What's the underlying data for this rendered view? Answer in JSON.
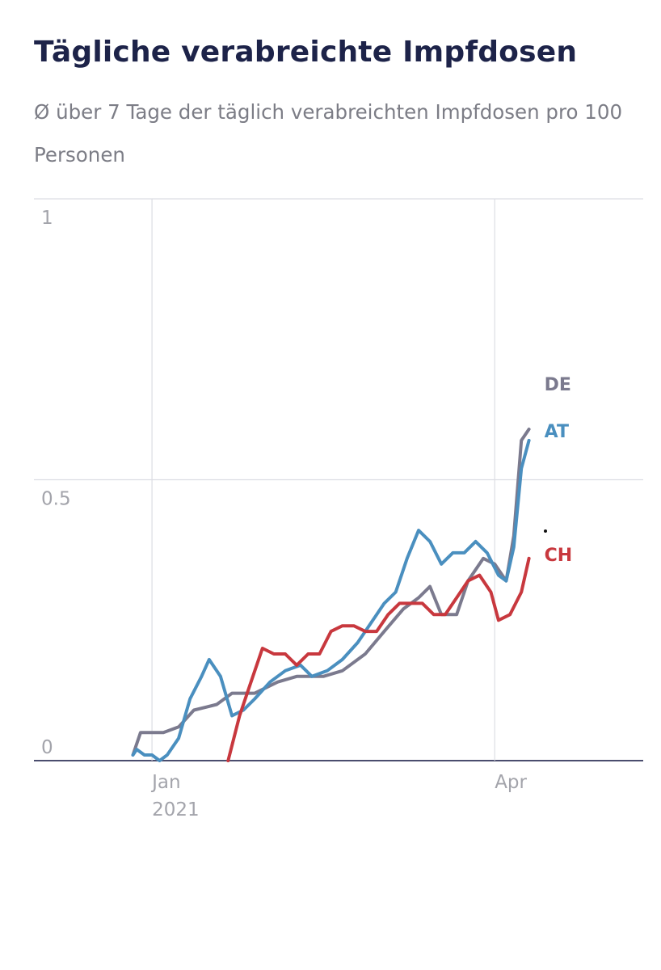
{
  "chart_data": {
    "type": "line",
    "title": "Tägliche verabreichte Impfdosen",
    "subtitle": "Ø über 7 Tage der täglich verabreichten Impfdosen pro 100 Personen",
    "y_ticks": [
      "1",
      "0.5",
      "0"
    ],
    "ylim": [
      0,
      1
    ],
    "x_ticks": [
      {
        "label": "Jan",
        "sublabel": "2021",
        "date": "2021-01-01"
      },
      {
        "label": "Apr",
        "sublabel": "",
        "date": "2021-04-01"
      }
    ],
    "xlim": [
      "2020-12-01",
      "2021-05-10"
    ],
    "grid": true,
    "series": [
      {
        "name": "DE",
        "color": "#7b7a8e",
        "points": [
          [
            "2020-12-27",
            0.01
          ],
          [
            "2020-12-29",
            0.05
          ],
          [
            "2021-01-04",
            0.05
          ],
          [
            "2021-01-08",
            0.06
          ],
          [
            "2021-01-12",
            0.09
          ],
          [
            "2021-01-18",
            0.1
          ],
          [
            "2021-01-22",
            0.12
          ],
          [
            "2021-01-28",
            0.12
          ],
          [
            "2021-02-03",
            0.14
          ],
          [
            "2021-02-08",
            0.15
          ],
          [
            "2021-02-15",
            0.15
          ],
          [
            "2021-02-20",
            0.16
          ],
          [
            "2021-02-26",
            0.19
          ],
          [
            "2021-03-03",
            0.23
          ],
          [
            "2021-03-08",
            0.27
          ],
          [
            "2021-03-12",
            0.29
          ],
          [
            "2021-03-15",
            0.31
          ],
          [
            "2021-03-18",
            0.26
          ],
          [
            "2021-03-22",
            0.26
          ],
          [
            "2021-03-25",
            0.32
          ],
          [
            "2021-03-29",
            0.36
          ],
          [
            "2021-04-01",
            0.35
          ],
          [
            "2021-04-04",
            0.32
          ],
          [
            "2021-04-06",
            0.4
          ],
          [
            "2021-04-08",
            0.57
          ],
          [
            "2021-04-10",
            0.59
          ]
        ]
      },
      {
        "name": "AT",
        "color": "#4a8fbf",
        "points": [
          [
            "2020-12-27",
            0.01
          ],
          [
            "2020-12-28",
            0.02
          ],
          [
            "2020-12-30",
            0.01
          ],
          [
            "2021-01-01",
            0.01
          ],
          [
            "2021-01-03",
            0.0
          ],
          [
            "2021-01-05",
            0.01
          ],
          [
            "2021-01-08",
            0.04
          ],
          [
            "2021-01-11",
            0.11
          ],
          [
            "2021-01-14",
            0.15
          ],
          [
            "2021-01-16",
            0.18
          ],
          [
            "2021-01-19",
            0.15
          ],
          [
            "2021-01-22",
            0.08
          ],
          [
            "2021-01-25",
            0.09
          ],
          [
            "2021-01-28",
            0.11
          ],
          [
            "2021-02-01",
            0.14
          ],
          [
            "2021-02-05",
            0.16
          ],
          [
            "2021-02-09",
            0.17
          ],
          [
            "2021-02-12",
            0.15
          ],
          [
            "2021-02-16",
            0.16
          ],
          [
            "2021-02-20",
            0.18
          ],
          [
            "2021-02-24",
            0.21
          ],
          [
            "2021-02-28",
            0.25
          ],
          [
            "2021-03-03",
            0.28
          ],
          [
            "2021-03-06",
            0.3
          ],
          [
            "2021-03-09",
            0.36
          ],
          [
            "2021-03-12",
            0.41
          ],
          [
            "2021-03-15",
            0.39
          ],
          [
            "2021-03-18",
            0.35
          ],
          [
            "2021-03-21",
            0.37
          ],
          [
            "2021-03-24",
            0.37
          ],
          [
            "2021-03-27",
            0.39
          ],
          [
            "2021-03-30",
            0.37
          ],
          [
            "2021-04-02",
            0.33
          ],
          [
            "2021-04-04",
            0.32
          ],
          [
            "2021-04-06",
            0.38
          ],
          [
            "2021-04-08",
            0.52
          ],
          [
            "2021-04-10",
            0.57
          ]
        ]
      },
      {
        "name": "CH",
        "color": "#c8383e",
        "points": [
          [
            "2021-01-21",
            0.0
          ],
          [
            "2021-01-24",
            0.08
          ],
          [
            "2021-01-27",
            0.14
          ],
          [
            "2021-01-30",
            0.2
          ],
          [
            "2021-02-02",
            0.19
          ],
          [
            "2021-02-05",
            0.19
          ],
          [
            "2021-02-08",
            0.17
          ],
          [
            "2021-02-11",
            0.19
          ],
          [
            "2021-02-14",
            0.19
          ],
          [
            "2021-02-17",
            0.23
          ],
          [
            "2021-02-20",
            0.24
          ],
          [
            "2021-02-23",
            0.24
          ],
          [
            "2021-02-26",
            0.23
          ],
          [
            "2021-03-01",
            0.23
          ],
          [
            "2021-03-04",
            0.26
          ],
          [
            "2021-03-07",
            0.28
          ],
          [
            "2021-03-10",
            0.28
          ],
          [
            "2021-03-13",
            0.28
          ],
          [
            "2021-03-16",
            0.26
          ],
          [
            "2021-03-19",
            0.26
          ],
          [
            "2021-03-22",
            0.29
          ],
          [
            "2021-03-25",
            0.32
          ],
          [
            "2021-03-28",
            0.33
          ],
          [
            "2021-03-31",
            0.3
          ],
          [
            "2021-04-02",
            0.25
          ],
          [
            "2021-04-05",
            0.26
          ],
          [
            "2021-04-08",
            0.3
          ],
          [
            "2021-04-10",
            0.36
          ]
        ]
      }
    ]
  }
}
